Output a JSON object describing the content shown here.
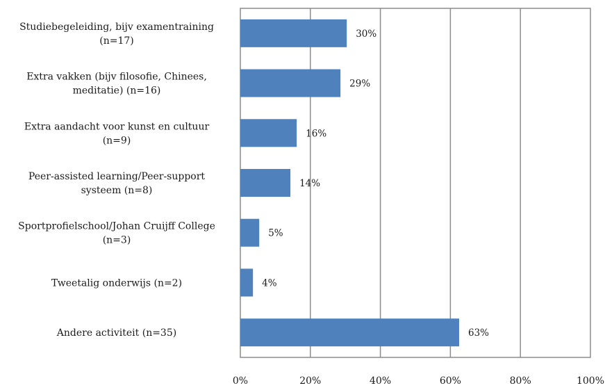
{
  "chart_data": {
    "type": "bar",
    "orientation": "horizontal",
    "categories": [
      [
        "Studiebegeleiding, bijv examentraining",
        "(n=17)"
      ],
      [
        "Extra vakken (bijv filosofie, Chinees,",
        "meditatie) (n=16)"
      ],
      [
        "Extra aandacht voor kunst en cultuur",
        "(n=9)"
      ],
      [
        "Peer-assisted learning/Peer-support",
        "systeem (n=8)"
      ],
      [
        "Sportprofielschool/Johan Cruijff College",
        "(n=3)"
      ],
      [
        "Tweetalig onderwijs (n=2)"
      ],
      [
        "Andere activiteit (n=35)"
      ]
    ],
    "values": [
      30.4,
      28.6,
      16.1,
      14.3,
      5.4,
      3.6,
      62.5
    ],
    "value_labels": [
      "30%",
      "29%",
      "16%",
      "14%",
      "5%",
      "4%",
      "63%"
    ],
    "xlim": [
      0,
      100
    ],
    "x_ticks": [
      0,
      20,
      40,
      60,
      80,
      100
    ],
    "x_tick_labels": [
      "0%",
      "20%",
      "40%",
      "60%",
      "80%",
      "100%"
    ],
    "grid": "vertical",
    "legend": "none",
    "colors": {
      "bar": "#4f81bd",
      "grid": "#8c8c8c",
      "frame": "#8c8c8c"
    }
  }
}
